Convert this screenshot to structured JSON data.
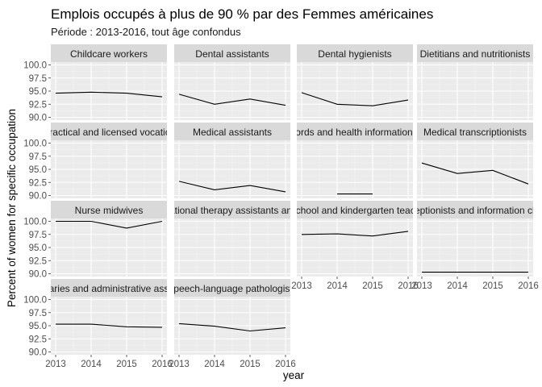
{
  "chart_data": {
    "type": "line",
    "title": "Emplois occupés à plus de 90 % par des Femmes américaines",
    "subtitle": "Période : 2013-2016, tout âge confondus",
    "xlabel": "year",
    "ylabel": "Percent of women for specific occupation",
    "x": [
      2013,
      2014,
      2015,
      2016
    ],
    "x_tick_labels": [
      "2013",
      "2014",
      "2015",
      "2016"
    ],
    "ylim": [
      90.0,
      100.0
    ],
    "y_tick_labels": [
      "90.0",
      "92.5",
      "95.0",
      "97.5",
      "100.0"
    ],
    "panel_background": "#ebebeb",
    "strip_background": "#d9d9d9",
    "grid": true,
    "line_color": "#000000",
    "panels": [
      {
        "name": "Childcare workers",
        "values": [
          94.6,
          94.8,
          94.6,
          93.9
        ]
      },
      {
        "name": "Dental assistants",
        "values": [
          94.4,
          92.5,
          93.5,
          92.3
        ]
      },
      {
        "name": "Dental hygienists",
        "values": [
          94.7,
          92.5,
          92.2,
          93.3
        ]
      },
      {
        "name": "Dietitians and nutritionists",
        "values": [
          null,
          null,
          null,
          null
        ]
      },
      {
        "name": "Licensed practical and licensed vocational nurses",
        "values": [
          null,
          null,
          null,
          null
        ]
      },
      {
        "name": "Medical assistants",
        "values": [
          92.7,
          91.1,
          91.9,
          90.7
        ]
      },
      {
        "name": "Medical records and health information technicians",
        "values": [
          null,
          90.3,
          90.3,
          null
        ]
      },
      {
        "name": "Medical transcriptionists",
        "values": [
          96.2,
          94.2,
          94.8,
          92.2
        ]
      },
      {
        "name": "Nurse midwives",
        "values": [
          100.0,
          100.0,
          98.7,
          100.0
        ]
      },
      {
        "name": "Occupational therapy assistants and aides",
        "values": [
          null,
          null,
          null,
          null
        ]
      },
      {
        "name": "Preschool and kindergarten teachers",
        "values": [
          97.5,
          97.6,
          97.2,
          98.1
        ]
      },
      {
        "name": "Receptionists and information clerks",
        "values": [
          90.3,
          90.3,
          90.3,
          90.3
        ]
      },
      {
        "name": "Secretaries and administrative assistants",
        "values": [
          95.3,
          95.3,
          94.8,
          94.7
        ]
      },
      {
        "name": "Speech-language pathologists",
        "values": [
          95.4,
          94.9,
          94.0,
          94.6
        ]
      }
    ]
  }
}
